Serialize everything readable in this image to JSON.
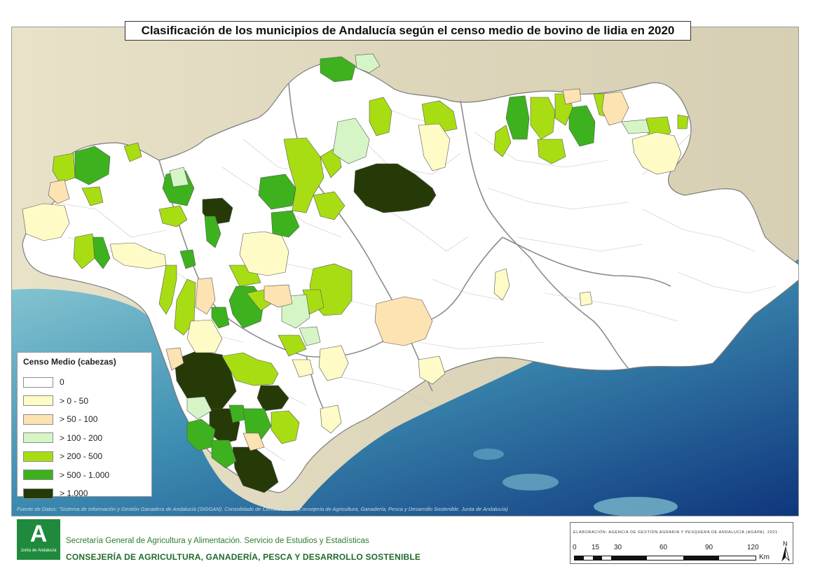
{
  "title": "Clasificación de los municipios de Andalucía según el censo medio de bovino de lidia en 2020",
  "legend": {
    "title": "Censo Medio (cabezas)",
    "items": [
      {
        "label": "0",
        "color": "#ffffff"
      },
      {
        "label": "> 0 - 50",
        "color": "#fefbc6"
      },
      {
        "label": "> 50 - 100",
        "color": "#fde2b2"
      },
      {
        "label": "> 100 - 200",
        "color": "#d6f5c6"
      },
      {
        "label": "> 200 - 500",
        "color": "#a9dd13"
      },
      {
        "label": "> 500 - 1.000",
        "color": "#3db21e"
      },
      {
        "label": "> 1.000",
        "color": "#263a08"
      }
    ]
  },
  "source_note": "Fuente de Datos: \"Sistema de Información y Gestión Ganadera de Andalucía (SIGGAN). Consolidado de Censos 2021\" (Consejería de Agricultura, Ganadería, Pesca y Desarrollo Sostenible. Junta de Andalucía)",
  "footer": {
    "logo_letter": "A",
    "logo_text": "Junta de Andalucía",
    "secretaria": "Secretaría General de Agricultura y Alimentación. Servicio de Estudios y Estadísticas",
    "consejeria": "CONSEJERÍA DE AGRICULTURA, GANADERÍA, PESCA Y DESARROLLO SOSTENIBLE"
  },
  "scale": {
    "elaboracion": "ELABORACIÓN: AGENCIA DE GESTIÓN AGRARIA Y PESQUERA DE ANDALUCÍA (AGAPA). 2021.",
    "ticks": [
      "0",
      "15",
      "30",
      "60",
      "90",
      "120"
    ],
    "unit": "Km",
    "north": "N"
  },
  "colors": {
    "sea_light": "#7fc4cf",
    "sea_deep": "#123f86",
    "land_outside": "#dfd7bd",
    "boundary": "#8c8c8c"
  }
}
